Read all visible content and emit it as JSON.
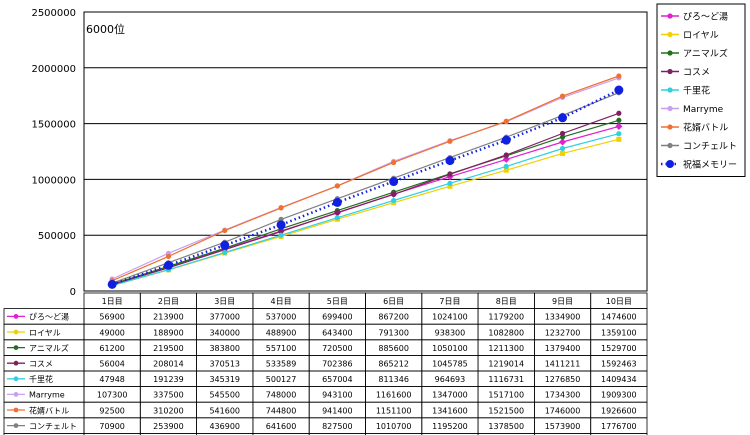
{
  "chart_data": {
    "type": "line",
    "annotation": "6000位",
    "categories": [
      "1日目",
      "2日目",
      "3日目",
      "4日目",
      "5日目",
      "6日目",
      "7日目",
      "8日目",
      "9日目",
      "10日目"
    ],
    "ylim": [
      0,
      2500000
    ],
    "yticks": [
      0,
      500000,
      1000000,
      1500000,
      2000000,
      2500000
    ],
    "grid": true,
    "legend_position": "right",
    "series": [
      {
        "name": "ぴろ～ど湯",
        "color": "#e020d0",
        "marker": "diamond",
        "dotted": false,
        "values": [
          56900,
          213900,
          377000,
          537000,
          699400,
          867200,
          1024100,
          1179200,
          1334900,
          1474600
        ]
      },
      {
        "name": "ロイヤル",
        "color": "#f0d000",
        "marker": "square",
        "dotted": false,
        "values": [
          49000,
          188900,
          340000,
          488900,
          643400,
          791300,
          938300,
          1082800,
          1232700,
          1359100
        ]
      },
      {
        "name": "アニマルズ",
        "color": "#207020",
        "marker": "circle",
        "dotted": false,
        "values": [
          61200,
          219500,
          383800,
          557100,
          720500,
          885600,
          1050100,
          1211300,
          1379400,
          1529700
        ]
      },
      {
        "name": "コスメ",
        "color": "#802060",
        "marker": "circle",
        "dotted": false,
        "values": [
          56004,
          208014,
          370513,
          533589,
          702386,
          865212,
          1045785,
          1219014,
          1411211,
          1592463
        ]
      },
      {
        "name": "千里花",
        "color": "#30d0e0",
        "marker": "circle",
        "dotted": false,
        "values": [
          47948,
          191239,
          345319,
          500127,
          657004,
          811346,
          964693,
          1116731,
          1276850,
          1409434
        ]
      },
      {
        "name": "Marryme",
        "color": "#c8a0f0",
        "marker": "circle",
        "dotted": false,
        "values": [
          107300,
          337500,
          545500,
          748000,
          943100,
          1161600,
          1347000,
          1517100,
          1734300,
          1909300
        ]
      },
      {
        "name": "花婿バトル",
        "color": "#f07030",
        "marker": "circle",
        "dotted": false,
        "values": [
          92500,
          310200,
          541600,
          744800,
          941400,
          1151100,
          1341600,
          1521500,
          1746000,
          1926600
        ]
      },
      {
        "name": "コンチェルト",
        "color": "#808080",
        "marker": "circle",
        "dotted": false,
        "values": [
          70900,
          253900,
          436900,
          641600,
          827500,
          1010700,
          1195200,
          1378500,
          1573900,
          1776700
        ]
      },
      {
        "name": "祝福メモリー",
        "color": "#1020e0",
        "marker": "bigcircle",
        "dotted": true,
        "values": [
          59400,
          230300,
          410600,
          592600,
          793600,
          980800,
          1168300,
          1351500,
          1552100,
          1800900
        ]
      }
    ]
  }
}
